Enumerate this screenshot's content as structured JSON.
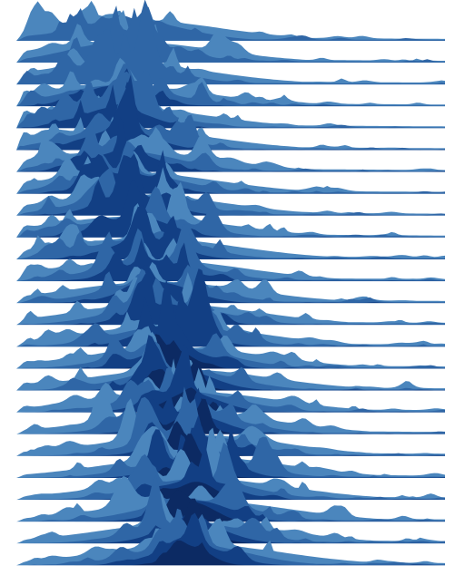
{
  "chart_data": {
    "type": "ridgeline",
    "title": "",
    "xlabel": "",
    "ylabel": "",
    "n_rows": 25,
    "colors": {
      "light": "#4b86bd",
      "mid": "#2f66a6",
      "dark": "#123f84",
      "darkest": "#0c2a63",
      "background": "#ffffff"
    },
    "row_seeds": [
      11,
      23,
      37,
      41,
      53,
      67,
      71,
      83,
      97,
      101,
      113,
      127,
      131,
      149,
      151,
      163,
      173,
      181,
      191,
      199,
      211,
      223,
      229,
      239,
      241
    ],
    "row_peak_position": [
      0.26,
      0.25,
      0.24,
      0.23,
      0.23,
      0.24,
      0.25,
      0.26,
      0.27,
      0.28,
      0.3,
      0.32,
      0.33,
      0.35,
      0.36,
      0.37,
      0.38,
      0.39,
      0.4,
      0.41,
      0.42,
      0.42,
      0.42,
      0.41,
      0.41
    ]
  }
}
